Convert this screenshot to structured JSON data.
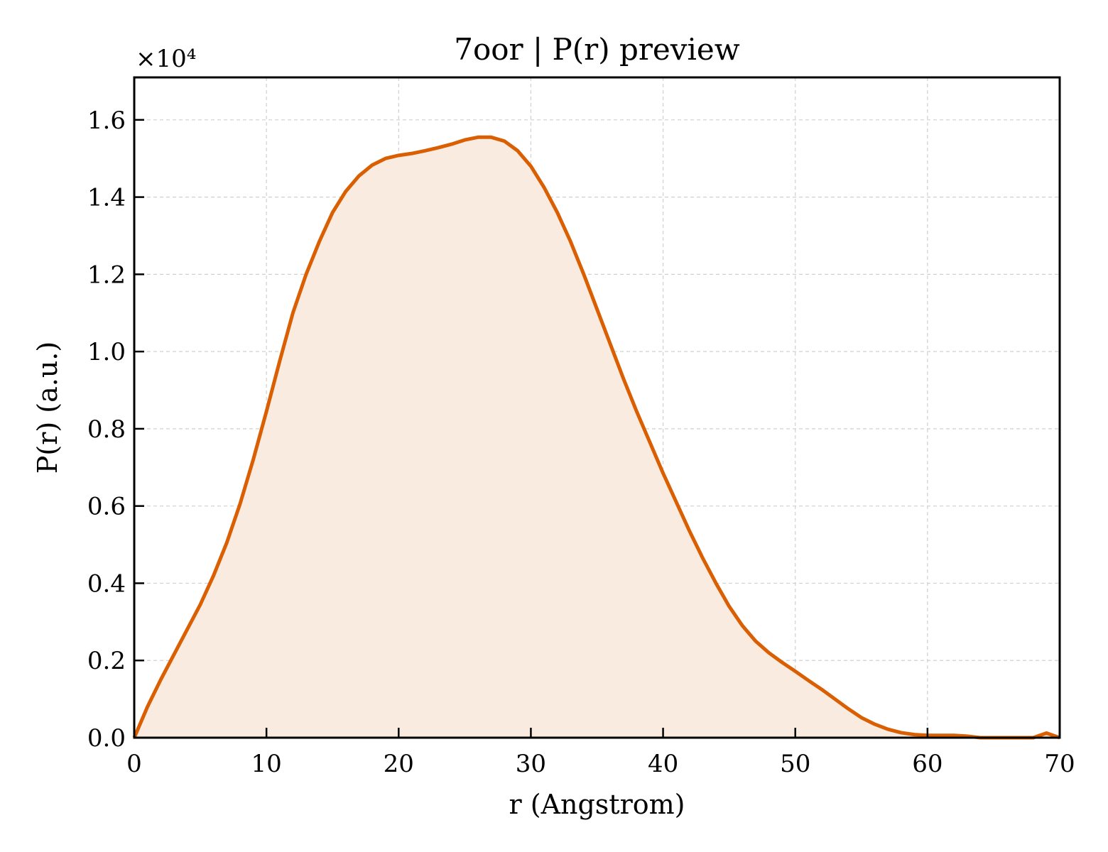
{
  "chart_data": {
    "type": "area",
    "title": "7oor | P(r) preview",
    "xlabel": "r (Angstrom)",
    "ylabel": "P(r) (a.u.)",
    "y_offset_label": "×10⁴",
    "xlim": [
      0,
      70
    ],
    "ylim": [
      0,
      1.71
    ],
    "xticks": [
      0,
      10,
      20,
      30,
      40,
      50,
      60,
      70
    ],
    "xtick_labels": [
      "0",
      "10",
      "20",
      "30",
      "40",
      "50",
      "60",
      "70"
    ],
    "yticks": [
      0.0,
      0.2,
      0.4,
      0.6,
      0.8,
      1.0,
      1.2,
      1.4,
      1.6
    ],
    "ytick_labels": [
      "0.0",
      "0.2",
      "0.4",
      "0.6",
      "0.8",
      "1.0",
      "1.2",
      "1.4",
      "1.6"
    ],
    "grid": true,
    "line_color": "#d95f02",
    "fill_color": "#faebe0",
    "series": [
      {
        "x": [
          0,
          1,
          2,
          3,
          4,
          5,
          6,
          7,
          8,
          9,
          10,
          11,
          12,
          13,
          14,
          15,
          16,
          17,
          18,
          19,
          20,
          21,
          22,
          23,
          24,
          25,
          26,
          27,
          28,
          29,
          30,
          31,
          32,
          33,
          34,
          35,
          36,
          37,
          38,
          39,
          40,
          41,
          42,
          43,
          44,
          45,
          46,
          47,
          48,
          49,
          50,
          51,
          52,
          53,
          54,
          55,
          56,
          57,
          58,
          59,
          60,
          61,
          62,
          63,
          64,
          65,
          66,
          67,
          68,
          69,
          70
        ],
        "y": [
          0.0,
          0.08,
          0.15,
          0.215,
          0.28,
          0.345,
          0.42,
          0.505,
          0.605,
          0.72,
          0.845,
          0.975,
          1.1,
          1.2,
          1.285,
          1.36,
          1.415,
          1.455,
          1.483,
          1.5,
          1.508,
          1.513,
          1.52,
          1.528,
          1.537,
          1.548,
          1.555,
          1.555,
          1.545,
          1.52,
          1.48,
          1.425,
          1.36,
          1.285,
          1.2,
          1.11,
          1.02,
          0.93,
          0.845,
          0.765,
          0.685,
          0.61,
          0.535,
          0.465,
          0.4,
          0.34,
          0.29,
          0.25,
          0.22,
          0.195,
          0.172,
          0.148,
          0.125,
          0.1,
          0.075,
          0.052,
          0.035,
          0.022,
          0.013,
          0.008,
          0.006,
          0.006,
          0.006,
          0.004,
          0.0,
          -0.005,
          -0.01,
          -0.01,
          -0.008,
          0.012,
          0.0
        ]
      }
    ]
  }
}
